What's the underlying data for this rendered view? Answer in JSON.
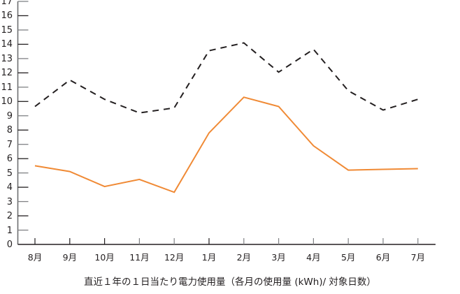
{
  "chart_data": {
    "type": "line",
    "title": "",
    "xlabel": "直近１年の１日当たり電力使用量（各月の使用量 (kWh)/ 対象日数）",
    "ylabel": "",
    "ylim": [
      0,
      17
    ],
    "yticks": [
      0,
      1,
      2,
      3,
      4,
      5,
      6,
      7,
      8,
      9,
      10,
      11,
      12,
      13,
      14,
      15,
      16,
      17
    ],
    "grid": false,
    "legend": "none",
    "categories": [
      "8月",
      "9月",
      "10月",
      "11月",
      "12月",
      "1月",
      "2月",
      "3月",
      "4月",
      "5月",
      "6月",
      "7月"
    ],
    "series": [
      {
        "name": "dashed-black",
        "style": "dashed",
        "color": "#231f20",
        "values": [
          9.65,
          11.5,
          10.15,
          9.2,
          9.55,
          13.55,
          14.1,
          12.05,
          13.65,
          10.75,
          9.4,
          10.15
        ]
      },
      {
        "name": "solid-orange",
        "style": "solid",
        "color": "#f08a35",
        "values": [
          5.5,
          5.1,
          4.05,
          4.55,
          3.65,
          7.8,
          10.3,
          9.65,
          6.9,
          5.2,
          5.25,
          5.3
        ]
      }
    ]
  },
  "caption": "直近１年の１日当たり電力使用量（各月の使用量 (kWh)/ 対象日数）"
}
